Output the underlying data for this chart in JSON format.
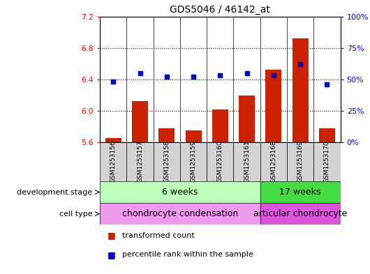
{
  "title": "GDS5046 / 46142_at",
  "samples": [
    "GSM1253156",
    "GSM1253157",
    "GSM1253158",
    "GSM1253159",
    "GSM1253160",
    "GSM1253161",
    "GSM1253168",
    "GSM1253169",
    "GSM1253170"
  ],
  "transformed_count": [
    5.65,
    6.12,
    5.78,
    5.75,
    6.02,
    6.19,
    6.52,
    6.92,
    5.78
  ],
  "percentile_rank": [
    48,
    55,
    52,
    52,
    53,
    55,
    53,
    62,
    46
  ],
  "ylim_left": [
    5.6,
    7.2
  ],
  "ylim_right": [
    0,
    100
  ],
  "yticks_left": [
    5.6,
    6.0,
    6.4,
    6.8,
    7.2
  ],
  "yticks_right": [
    0,
    25,
    50,
    75,
    100
  ],
  "bar_color": "#cc2200",
  "dot_color": "#0000cc",
  "bar_bottom": 5.6,
  "dev_stage_groups": [
    {
      "label": "6 weeks",
      "start": 0,
      "end": 6,
      "color": "#bbffbb"
    },
    {
      "label": "17 weeks",
      "start": 6,
      "end": 9,
      "color": "#44dd44"
    }
  ],
  "cell_type_groups": [
    {
      "label": "chondrocyte condensation",
      "start": 0,
      "end": 6,
      "color": "#ee99ee"
    },
    {
      "label": "articular chondrocyte",
      "start": 6,
      "end": 9,
      "color": "#dd55dd"
    }
  ],
  "dev_stage_label": "development stage",
  "cell_type_label": "cell type",
  "legend_bar_label": "transformed count",
  "legend_dot_label": "percentile rank within the sample",
  "sample_box_color": "#d3d3d3",
  "grid_dotted_ticks": [
    6.0,
    6.4,
    6.8
  ],
  "bar_width": 0.6
}
